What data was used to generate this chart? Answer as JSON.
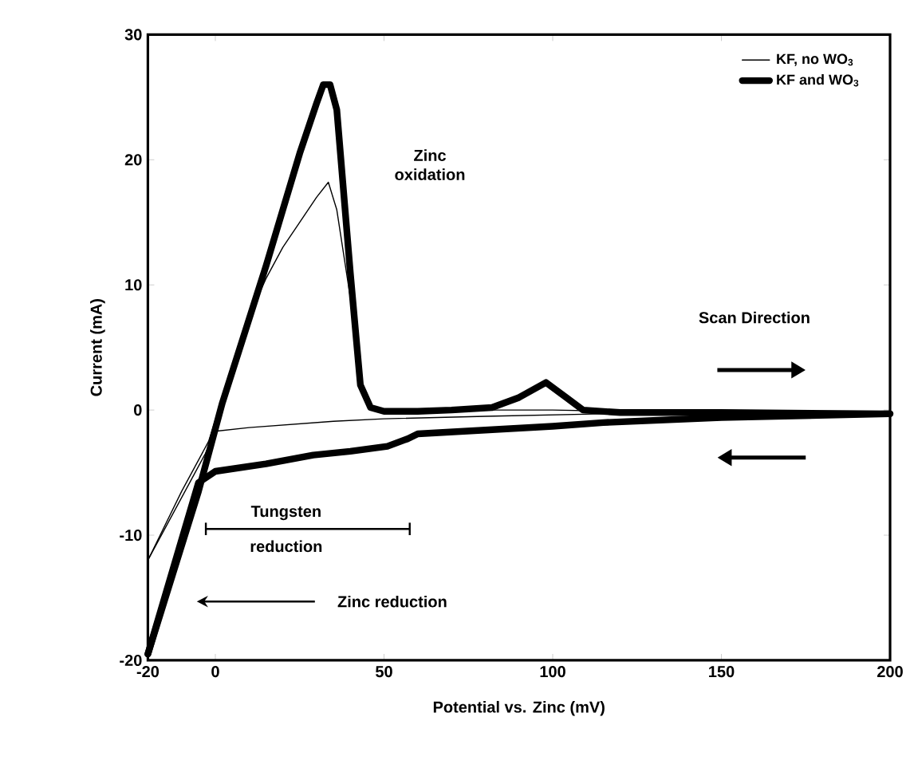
{
  "chart_data": {
    "type": "line",
    "xlabel": "Potential vs. Zinc (mV)",
    "ylabel": "Current (mA)",
    "xlim": [
      -20,
      200
    ],
    "xticks": [
      -20,
      0,
      50,
      100,
      150,
      200
    ],
    "ylim": [
      -20,
      30
    ],
    "yticks": [
      -20,
      -10,
      0,
      10,
      20,
      30
    ],
    "legend": "top right",
    "series": [
      {
        "name": "KF, no WO$_{3}$",
        "color": "#000000",
        "x": [
          -20,
          -10,
          -2,
          5,
          10,
          15,
          20,
          25,
          30,
          33.5,
          36,
          40,
          43,
          46,
          50,
          80,
          100,
          120,
          150,
          200
        ],
        "values": [
          -12,
          -6.5,
          -2.5,
          3.5,
          7.5,
          10.5,
          13,
          15,
          17,
          18.2,
          16,
          9,
          2,
          0.2,
          0,
          0,
          0,
          -0.1,
          -0.2,
          -0.3
        ]
      },
      {
        "name": "KF and WO$_{3}$",
        "color": "#000000",
        "x": [
          -20,
          -5,
          2,
          15,
          25,
          30,
          32,
          34,
          36,
          40,
          43,
          46,
          50,
          60,
          70,
          82,
          90,
          98,
          104,
          109,
          120,
          150,
          200
        ],
        "values": [
          -19.5,
          -6.5,
          0.5,
          11.5,
          20.5,
          24.5,
          26,
          26,
          24,
          11,
          2,
          0.2,
          -0.1,
          -0.1,
          0,
          0.2,
          1,
          2.2,
          1,
          0,
          -0.2,
          -0.2,
          -0.3
        ]
      },
      {
        "color": "#000000",
        "x": [
          -20,
          -3,
          0,
          10,
          35,
          50,
          80,
          115,
          150,
          200
        ],
        "values": [
          -12,
          -3.5,
          -1.7,
          -1.4,
          -0.9,
          -0.7,
          -0.5,
          -0.3,
          -0.3,
          -0.3
        ]
      },
      {
        "color": "#000000",
        "x": [
          -20,
          -5,
          0,
          15,
          29,
          40,
          51,
          57,
          60,
          80,
          100,
          115,
          150,
          200
        ],
        "values": [
          -19.5,
          -5.8,
          -4.9,
          -4.3,
          -3.6,
          -3.3,
          -2.9,
          -2.3,
          -1.9,
          -1.6,
          -1.3,
          -1,
          -0.6,
          -0.3
        ]
      }
    ],
    "annotations": [
      "Zinc oxidation",
      "Scan Direction",
      "Tungsten reduction",
      "Zinc reduction"
    ]
  }
}
